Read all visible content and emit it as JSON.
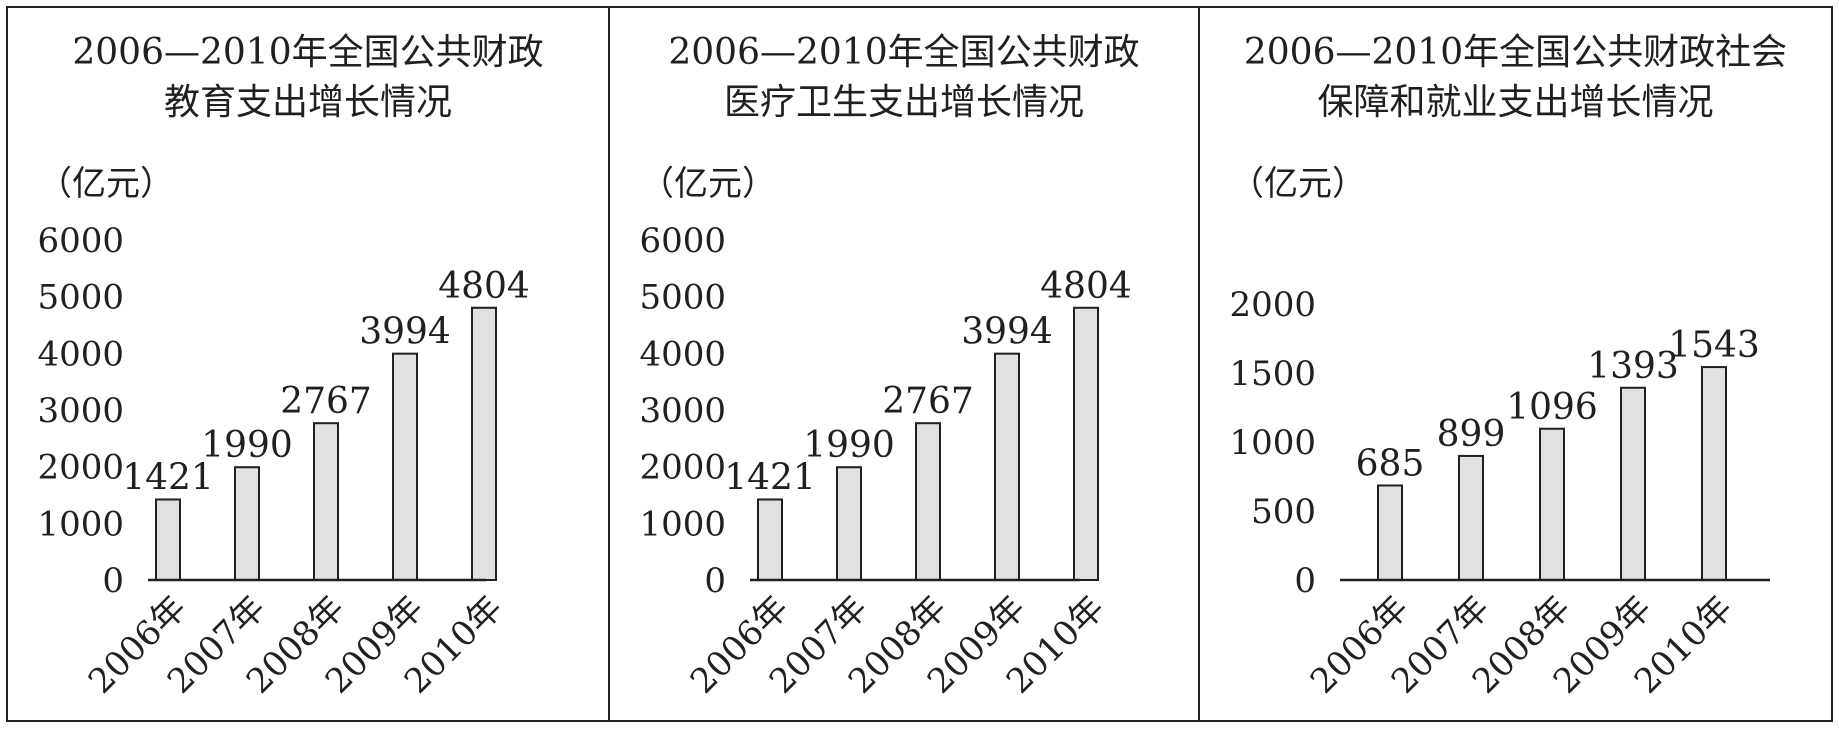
{
  "chart_data": [
    {
      "type": "bar",
      "title_lines": [
        "2006—2010年全国公共财政",
        "教育支出增长情况"
      ],
      "ylabel": "（亿元）",
      "categories": [
        "2006年",
        "2007年",
        "2008年",
        "2009年",
        "2010年"
      ],
      "values": [
        1421,
        1990,
        2767,
        3994,
        4804
      ],
      "ylim": [
        0,
        6000
      ],
      "yticks": [
        0,
        1000,
        2000,
        3000,
        4000,
        5000,
        6000
      ],
      "grid": false,
      "bar_color": "#e1e1e1"
    },
    {
      "type": "bar",
      "title_lines": [
        "2006—2010年全国公共财政",
        "医疗卫生支出增长情况"
      ],
      "ylabel": "（亿元）",
      "categories": [
        "2006年",
        "2007年",
        "2008年",
        "2009年",
        "2010年"
      ],
      "values": [
        1421,
        1990,
        2767,
        3994,
        4804
      ],
      "ylim": [
        0,
        6000
      ],
      "yticks": [
        0,
        1000,
        2000,
        3000,
        4000,
        5000,
        6000
      ],
      "grid": false,
      "bar_color": "#e1e1e1"
    },
    {
      "type": "bar",
      "title_lines": [
        "2006—2010年全国公共财政社会",
        "保障和就业支出增长情况"
      ],
      "ylabel": "（亿元）",
      "categories": [
        "2006年",
        "2007年",
        "2008年",
        "2009年",
        "2010年"
      ],
      "values": [
        685,
        899,
        1096,
        1393,
        1543
      ],
      "ylim": [
        0,
        2000
      ],
      "yticks": [
        0,
        500,
        1000,
        1500,
        2000
      ],
      "grid": false,
      "bar_color": "#e1e1e1"
    }
  ]
}
